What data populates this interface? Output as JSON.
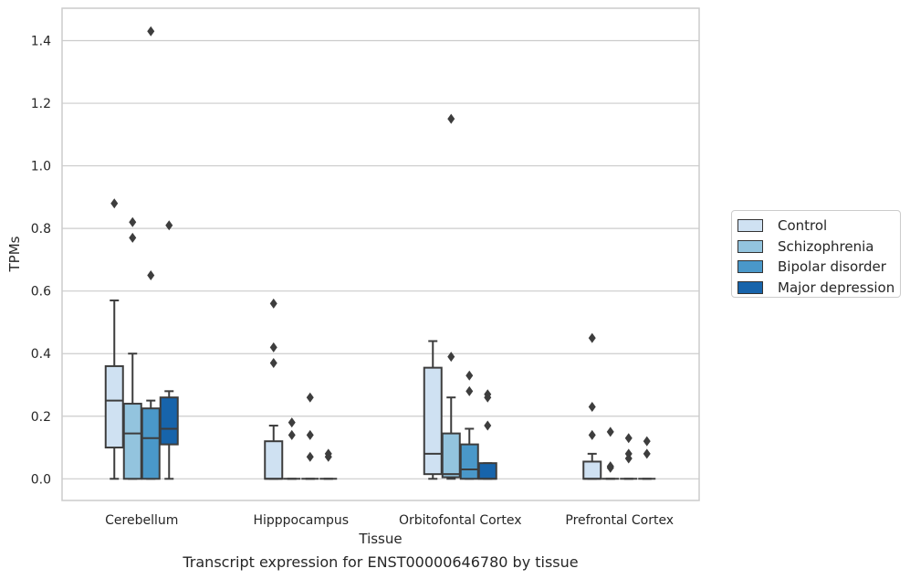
{
  "chart_data": {
    "type": "box",
    "ylabel": "TPMs",
    "xlabel": "Tissue",
    "caption": "Transcript expression for ENST00000646780 by tissue",
    "ylim": [
      -0.07,
      1.5
    ],
    "yticks": [
      "0.0",
      "0.2",
      "0.4",
      "0.6",
      "0.8",
      "1.0",
      "1.2",
      "1.4"
    ],
    "grid": "horizontal",
    "legend_position": "right",
    "categories": [
      "Cerebellum",
      "Hipppocampus",
      "Orbitofontal Cortex",
      "Prefrontal Cortex"
    ],
    "series": [
      {
        "name": "Control",
        "color": "#cfe1f2"
      },
      {
        "name": "Schizophrenia",
        "color": "#93c4de"
      },
      {
        "name": "Bipolar disorder",
        "color": "#4a98c9"
      },
      {
        "name": "Major depression",
        "color": "#1764ab"
      }
    ],
    "boxes": [
      [
        {
          "whislo": 0.0,
          "q1": 0.1,
          "med": 0.25,
          "q3": 0.36,
          "whishi": 0.57,
          "fliers": [
            0.88
          ]
        },
        {
          "whislo": 0.0,
          "q1": 0.0,
          "med": 0.145,
          "q3": 0.24,
          "whishi": 0.4,
          "fliers": [
            0.82,
            0.77
          ]
        },
        {
          "whislo": 0.0,
          "q1": 0.0,
          "med": 0.13,
          "q3": 0.225,
          "whishi": 0.25,
          "fliers": [
            1.43,
            0.65
          ]
        },
        {
          "whislo": 0.0,
          "q1": 0.11,
          "med": 0.16,
          "q3": 0.26,
          "whishi": 0.28,
          "fliers": [
            0.81
          ]
        }
      ],
      [
        {
          "whislo": 0.0,
          "q1": 0.0,
          "med": 0.0,
          "q3": 0.12,
          "whishi": 0.17,
          "fliers": [
            0.56,
            0.42,
            0.37
          ]
        },
        {
          "whislo": 0.0,
          "q1": 0.0,
          "med": 0.0,
          "q3": 0.0,
          "whishi": 0.0,
          "fliers": [
            0.18,
            0.14
          ]
        },
        {
          "whislo": 0.0,
          "q1": 0.0,
          "med": 0.0,
          "q3": 0.0,
          "whishi": 0.0,
          "fliers": [
            0.26,
            0.14,
            0.07
          ]
        },
        {
          "whislo": 0.0,
          "q1": 0.0,
          "med": 0.0,
          "q3": 0.0,
          "whishi": 0.0,
          "fliers": [
            0.08,
            0.07
          ]
        }
      ],
      [
        {
          "whislo": 0.0,
          "q1": 0.015,
          "med": 0.08,
          "q3": 0.355,
          "whishi": 0.44,
          "fliers": []
        },
        {
          "whislo": 0.0,
          "q1": 0.005,
          "med": 0.015,
          "q3": 0.145,
          "whishi": 0.26,
          "fliers": [
            1.15,
            0.39
          ]
        },
        {
          "whislo": 0.0,
          "q1": 0.0,
          "med": 0.03,
          "q3": 0.11,
          "whishi": 0.16,
          "fliers": [
            0.33,
            0.28
          ]
        },
        {
          "whislo": 0.0,
          "q1": 0.0,
          "med": 0.0,
          "q3": 0.05,
          "whishi": 0.05,
          "fliers": [
            0.27,
            0.26,
            0.17
          ]
        }
      ],
      [
        {
          "whislo": 0.0,
          "q1": 0.0,
          "med": 0.0,
          "q3": 0.055,
          "whishi": 0.08,
          "fliers": [
            0.45,
            0.23,
            0.14
          ]
        },
        {
          "whislo": 0.0,
          "q1": 0.0,
          "med": 0.0,
          "q3": 0.0,
          "whishi": 0.0,
          "fliers": [
            0.15,
            0.04,
            0.035
          ]
        },
        {
          "whislo": 0.0,
          "q1": 0.0,
          "med": 0.0,
          "q3": 0.0,
          "whishi": 0.0,
          "fliers": [
            0.13,
            0.08,
            0.065
          ]
        },
        {
          "whislo": 0.0,
          "q1": 0.0,
          "med": 0.0,
          "q3": 0.0,
          "whishi": 0.0,
          "fliers": [
            0.12,
            0.08
          ]
        }
      ]
    ]
  }
}
